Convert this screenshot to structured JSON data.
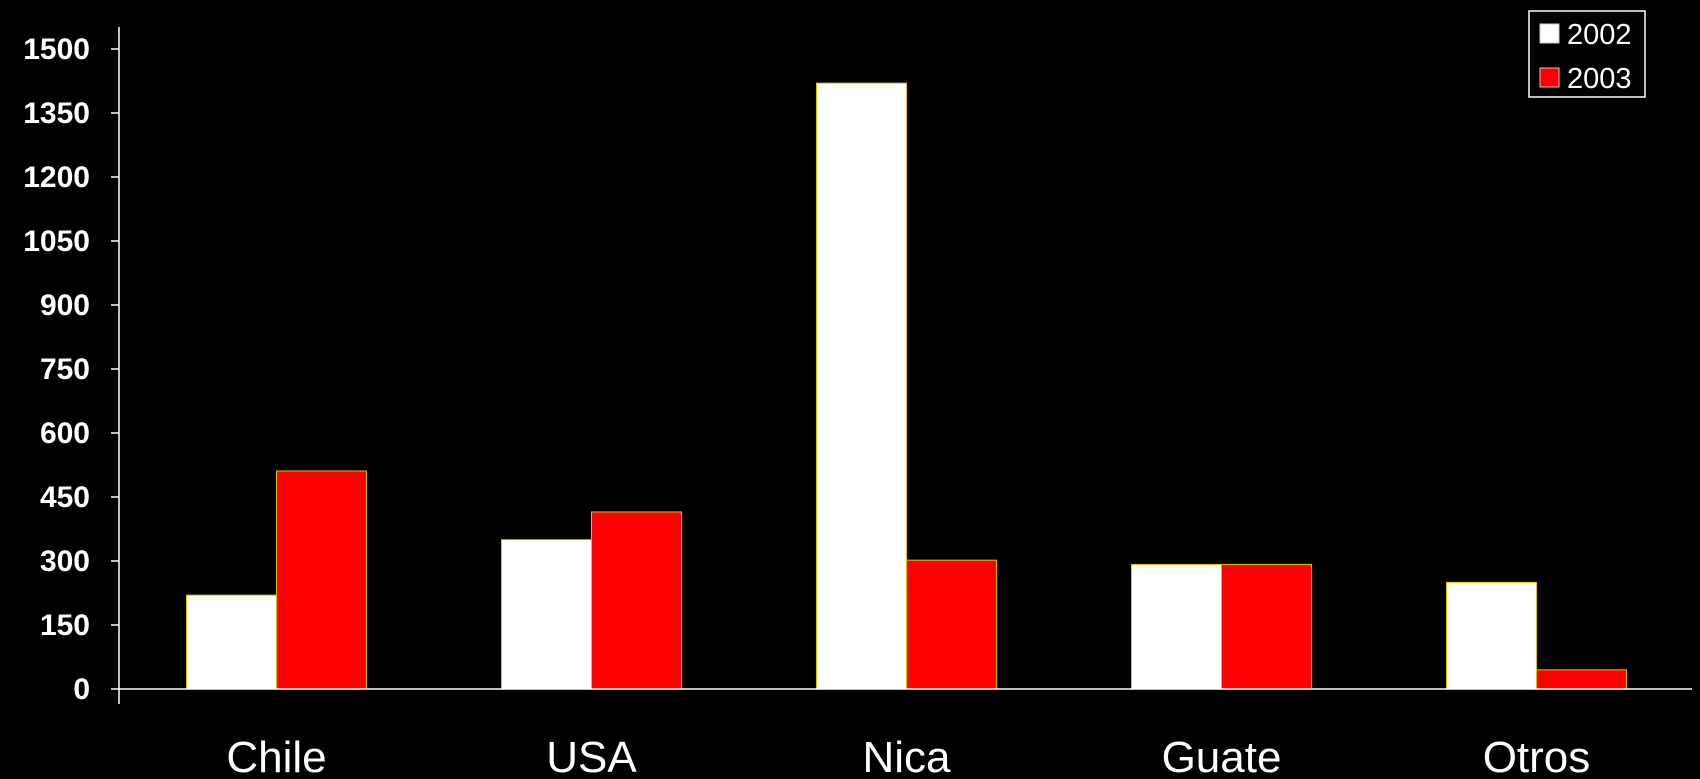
{
  "chart_data": {
    "type": "bar",
    "title": "",
    "xlabel": "",
    "ylabel": "",
    "categories": [
      "Chile",
      "USA",
      "Nica",
      "Guate",
      "Otros"
    ],
    "series": [
      {
        "name": "2002",
        "color": "#ffffff",
        "values": [
          220,
          350,
          1420,
          292,
          250
        ]
      },
      {
        "name": "2003",
        "color": "#ff0000",
        "values": [
          511,
          415,
          302,
          292,
          45
        ]
      }
    ],
    "ylim": [
      0,
      1500
    ],
    "yticks": [
      "0",
      "150",
      "300",
      "450",
      "600",
      "750",
      "900",
      "1050",
      "1200",
      "1350",
      "1500"
    ],
    "grid": false,
    "legend_position": "top-right",
    "background": "#000000",
    "axis_color": "#ffffff",
    "bar_edge_color": "#d4c200"
  }
}
